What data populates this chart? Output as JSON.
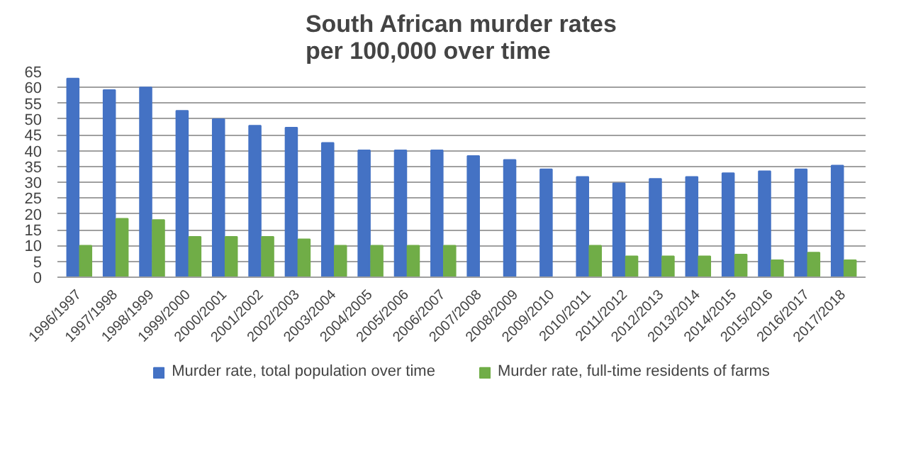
{
  "chart_data": {
    "type": "bar",
    "title": "South African murder rates\nper 100,000 over time",
    "categories": [
      "1996/1997",
      "1997/1998",
      "1998/1999",
      "1999/2000",
      "2000/2001",
      "2001/2002",
      "2002/2003",
      "2003/2004",
      "2004/2005",
      "2005/2006",
      "2006/2007",
      "2007/2008",
      "2008/2009",
      "2009/2010",
      "2010/2011",
      "2011/2012",
      "2012/2013",
      "2013/2014",
      "2014/2015",
      "2015/2016",
      "2016/2017",
      "2017/2018"
    ],
    "series": [
      {
        "name": "Murder rate, total population over time",
        "color": "#4472c4",
        "values": [
          62.8,
          59.2,
          60.0,
          52.6,
          50.0,
          47.9,
          47.3,
          42.5,
          40.1,
          40.1,
          40.1,
          38.3,
          37.1,
          34.1,
          31.7,
          29.7,
          31.1,
          31.7,
          32.9,
          33.5,
          34.1,
          35.3
        ]
      },
      {
        "name": "Murder rate, full-time residents of farms",
        "color": "#70ad47",
        "values": [
          10.0,
          18.5,
          18.1,
          12.8,
          12.8,
          12.8,
          12.0,
          10.0,
          10.0,
          10.0,
          10.0,
          null,
          null,
          null,
          10.0,
          6.6,
          6.6,
          6.6,
          7.2,
          5.4,
          7.8,
          5.4
        ]
      }
    ],
    "ylim": [
      0,
      65
    ],
    "yticks": [
      0,
      5,
      10,
      15,
      20,
      25,
      30,
      35,
      40,
      45,
      50,
      55,
      60,
      65
    ],
    "grid": "y",
    "legend": "bottom"
  }
}
